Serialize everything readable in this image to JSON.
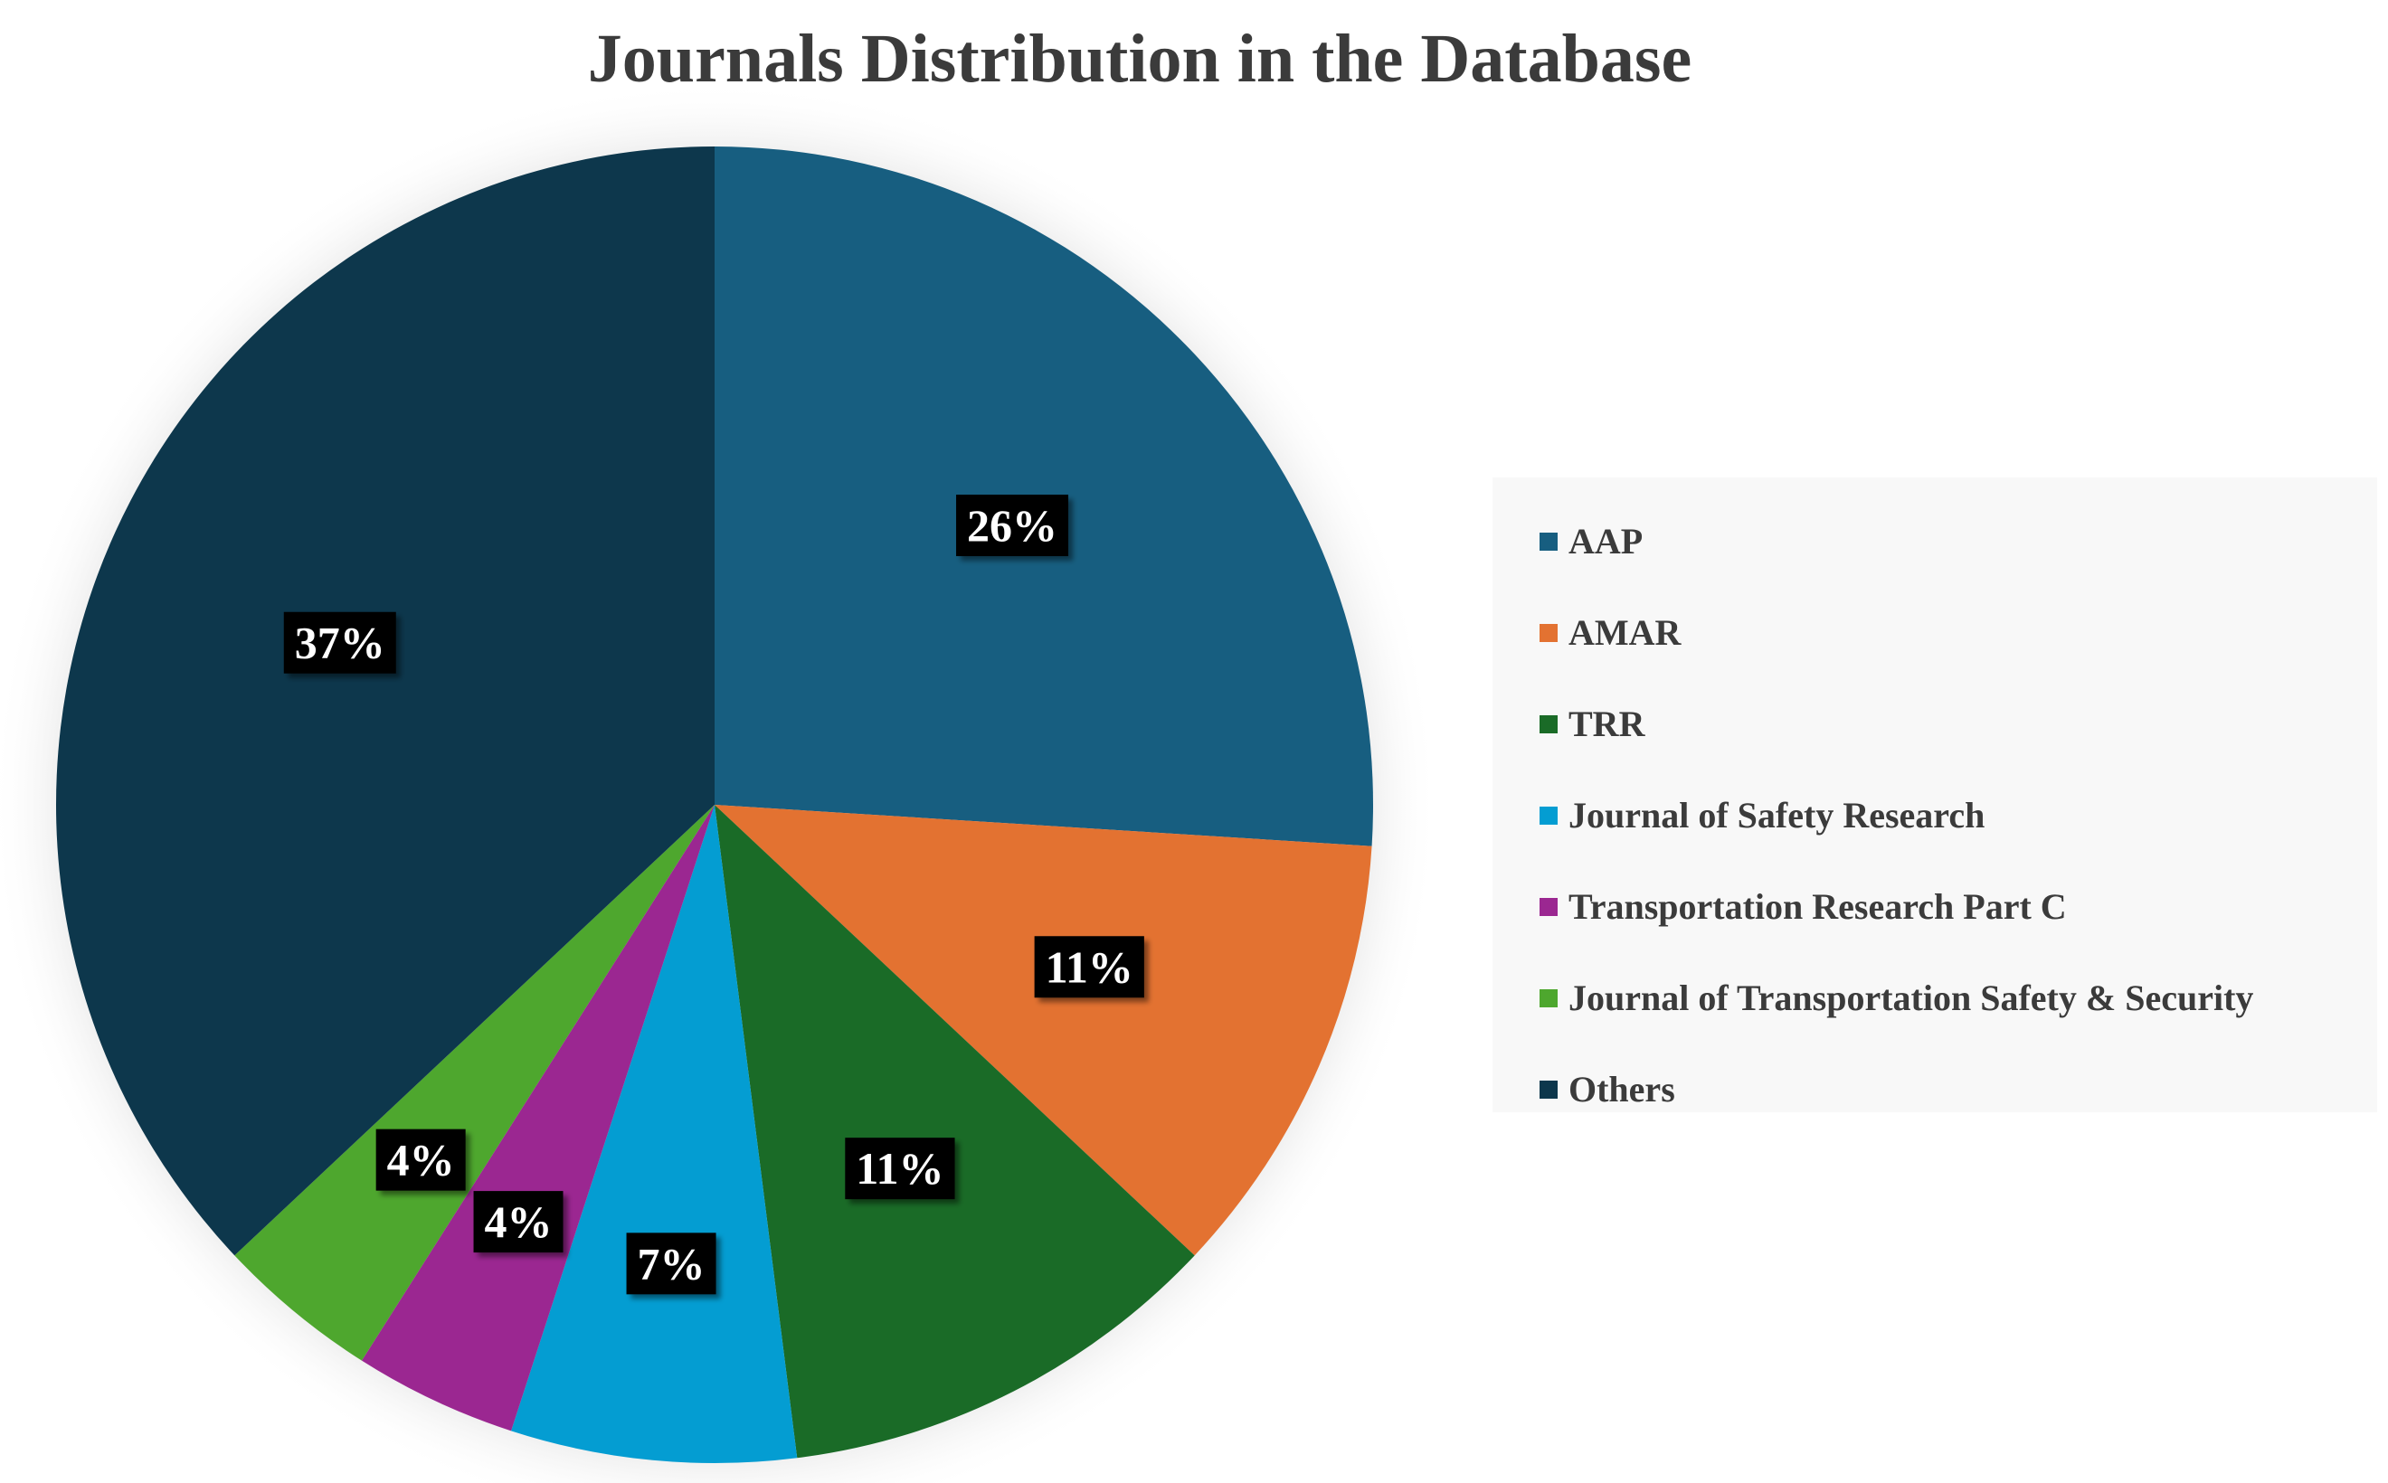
{
  "chart_data": {
    "type": "pie",
    "title": "Journals Distribution in the Database",
    "slices": [
      {
        "label": "AAP",
        "value": 26,
        "display": "26%",
        "color": "#175e80"
      },
      {
        "label": "AMAR",
        "value": 11,
        "display": "11%",
        "color": "#e37231"
      },
      {
        "label": "TRR",
        "value": 11,
        "display": "11%",
        "color": "#1a6b27"
      },
      {
        "label": "Journal of Safety Research",
        "value": 7,
        "display": "7%",
        "color": "#049dd2"
      },
      {
        "label": "Transportation Research Part C",
        "value": 4,
        "display": "4%",
        "color": "#9b2791"
      },
      {
        "label": "Journal of Transportation Safety & Security",
        "value": 4,
        "display": "4%",
        "color": "#4ea72e"
      },
      {
        "label": "Others",
        "value": 37,
        "display": "37%",
        "color": "#0d374c"
      }
    ],
    "legend": {
      "position": "right"
    }
  }
}
